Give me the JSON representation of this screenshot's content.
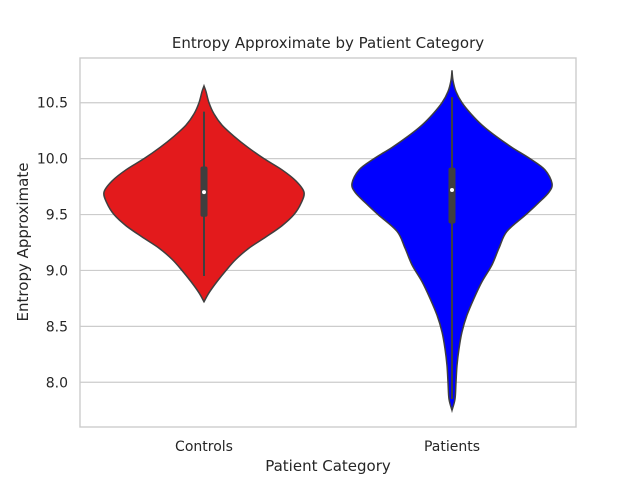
{
  "chart_data": {
    "type": "violin",
    "title": "Entropy Approximate by Patient Category",
    "xlabel": "Patient Category",
    "ylabel": "Entropy Approximate",
    "categories": [
      "Controls",
      "Patients"
    ],
    "ylim": [
      7.6,
      10.9
    ],
    "yticks": [
      8.0,
      8.5,
      9.0,
      9.5,
      10.0,
      10.5
    ],
    "ytick_labels": [
      "8.0",
      "8.5",
      "9.0",
      "9.5",
      "10.0",
      "10.5"
    ],
    "grid": "horizontal",
    "series": [
      {
        "category": "Controls",
        "color": "#e31a1c",
        "min": 8.72,
        "max": 10.65,
        "whisker_low": 8.95,
        "whisker_high": 10.42,
        "q1": 9.48,
        "median": 9.7,
        "q3": 9.93,
        "density": [
          [
            8.72,
            0.0
          ],
          [
            8.8,
            0.05
          ],
          [
            8.9,
            0.13
          ],
          [
            9.0,
            0.22
          ],
          [
            9.1,
            0.32
          ],
          [
            9.2,
            0.45
          ],
          [
            9.3,
            0.62
          ],
          [
            9.4,
            0.78
          ],
          [
            9.5,
            0.9
          ],
          [
            9.6,
            0.97
          ],
          [
            9.7,
            1.0
          ],
          [
            9.8,
            0.92
          ],
          [
            9.9,
            0.78
          ],
          [
            10.0,
            0.6
          ],
          [
            10.1,
            0.44
          ],
          [
            10.2,
            0.3
          ],
          [
            10.3,
            0.18
          ],
          [
            10.4,
            0.1
          ],
          [
            10.5,
            0.05
          ],
          [
            10.6,
            0.02
          ],
          [
            10.65,
            0.0
          ]
        ]
      },
      {
        "category": "Patients",
        "color": "#0000ff",
        "min": 7.75,
        "max": 10.79,
        "whisker_low": 7.85,
        "whisker_high": 10.55,
        "q1": 9.42,
        "median": 9.72,
        "q3": 9.92,
        "density": [
          [
            7.75,
            0.0
          ],
          [
            7.85,
            0.03
          ],
          [
            8.0,
            0.04
          ],
          [
            8.15,
            0.05
          ],
          [
            8.3,
            0.07
          ],
          [
            8.45,
            0.1
          ],
          [
            8.6,
            0.15
          ],
          [
            8.75,
            0.22
          ],
          [
            8.9,
            0.3
          ],
          [
            9.05,
            0.4
          ],
          [
            9.2,
            0.47
          ],
          [
            9.35,
            0.55
          ],
          [
            9.5,
            0.74
          ],
          [
            9.6,
            0.86
          ],
          [
            9.7,
            0.97
          ],
          [
            9.78,
            1.0
          ],
          [
            9.9,
            0.93
          ],
          [
            10.0,
            0.78
          ],
          [
            10.1,
            0.6
          ],
          [
            10.2,
            0.44
          ],
          [
            10.3,
            0.3
          ],
          [
            10.4,
            0.19
          ],
          [
            10.5,
            0.1
          ],
          [
            10.6,
            0.04
          ],
          [
            10.7,
            0.01
          ],
          [
            10.79,
            0.0
          ]
        ]
      }
    ]
  }
}
